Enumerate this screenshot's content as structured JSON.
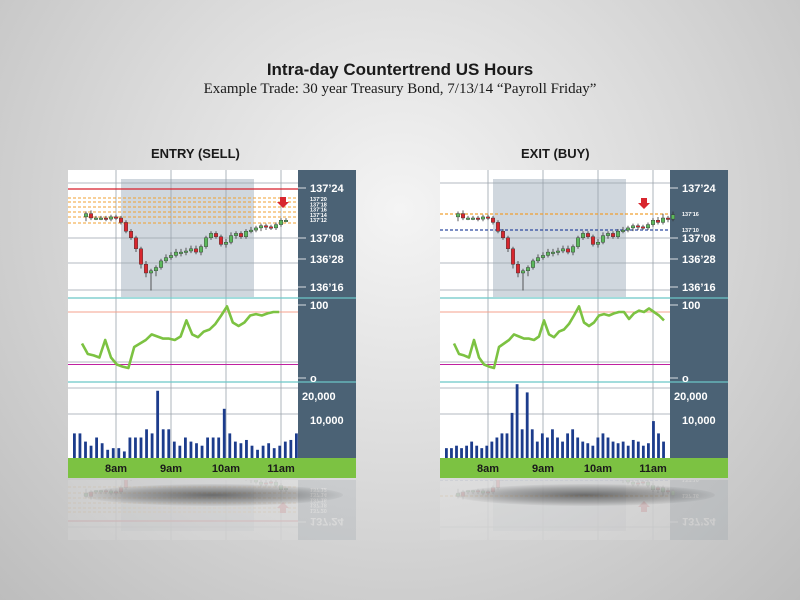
{
  "page": {
    "title": "Intra-day Countertrend US Hours",
    "subtitle": "Example Trade: 30 year Treasury Bond, 7/13/14 “Payroll Friday”"
  },
  "colors": {
    "axis_panel": "#4b6275",
    "time_bar": "#7cc242",
    "highlight": "#d0d7de",
    "resistance": "#d81f2b",
    "fib_lines": "#f0a030",
    "blue_dashed": "#2d4aa0",
    "candle_up": "#5cb85c",
    "candle_down": "#d8262e",
    "oscillator": "#7cc242",
    "osc_upper": "#f4a28c",
    "osc_lower": "#c020a0",
    "volume": "#1c3c8c",
    "arrow": "#d8262e"
  },
  "chart_data": [
    {
      "type": "candlestick+oscillator+volume",
      "heading": "ENTRY (SELL)",
      "x_ticks": [
        "8am",
        "9am",
        "10am",
        "11am"
      ],
      "price_ticks": [
        "137’24",
        "137’08",
        "136’28",
        "136’16"
      ],
      "fib_ticks": [
        "137’20",
        "137’18",
        "137’16",
        "137’14",
        "137’12"
      ],
      "osc_ticks": [
        "100",
        "o"
      ],
      "volume_ticks": [
        "20,000",
        "10,000"
      ],
      "candles": [
        [
          0.29,
          0.26,
          0.32,
          0.25
        ],
        [
          0.26,
          0.3,
          0.31,
          0.24
        ],
        [
          0.3,
          0.3,
          0.31,
          0.29
        ],
        [
          0.3,
          0.3,
          0.31,
          0.29
        ],
        [
          0.3,
          0.31,
          0.32,
          0.29
        ],
        [
          0.31,
          0.29,
          0.32,
          0.28
        ],
        [
          0.29,
          0.3,
          0.31,
          0.28
        ],
        [
          0.3,
          0.34,
          0.35,
          0.29
        ],
        [
          0.34,
          0.42,
          0.43,
          0.33
        ],
        [
          0.42,
          0.48,
          0.49,
          0.41
        ],
        [
          0.48,
          0.58,
          0.6,
          0.47
        ],
        [
          0.58,
          0.72,
          0.75,
          0.57
        ],
        [
          0.72,
          0.8,
          0.83,
          0.7
        ],
        [
          0.8,
          0.78,
          0.95,
          0.77
        ],
        [
          0.78,
          0.75,
          0.82,
          0.74
        ],
        [
          0.75,
          0.69,
          0.76,
          0.68
        ],
        [
          0.69,
          0.66,
          0.7,
          0.64
        ],
        [
          0.66,
          0.64,
          0.67,
          0.62
        ],
        [
          0.64,
          0.61,
          0.65,
          0.59
        ],
        [
          0.61,
          0.61,
          0.64,
          0.59
        ],
        [
          0.61,
          0.6,
          0.63,
          0.58
        ],
        [
          0.6,
          0.58,
          0.61,
          0.56
        ],
        [
          0.58,
          0.61,
          0.62,
          0.56
        ],
        [
          0.61,
          0.56,
          0.63,
          0.55
        ],
        [
          0.56,
          0.48,
          0.57,
          0.47
        ],
        [
          0.48,
          0.44,
          0.49,
          0.43
        ],
        [
          0.44,
          0.47,
          0.48,
          0.43
        ],
        [
          0.47,
          0.54,
          0.55,
          0.46
        ],
        [
          0.54,
          0.52,
          0.56,
          0.5
        ],
        [
          0.52,
          0.46,
          0.53,
          0.44
        ],
        [
          0.46,
          0.44,
          0.48,
          0.43
        ],
        [
          0.44,
          0.47,
          0.48,
          0.43
        ],
        [
          0.47,
          0.42,
          0.48,
          0.41
        ],
        [
          0.42,
          0.41,
          0.43,
          0.39
        ],
        [
          0.41,
          0.39,
          0.42,
          0.38
        ],
        [
          0.39,
          0.37,
          0.41,
          0.36
        ],
        [
          0.37,
          0.38,
          0.4,
          0.36
        ],
        [
          0.38,
          0.39,
          0.4,
          0.37
        ],
        [
          0.39,
          0.36,
          0.4,
          0.35
        ],
        [
          0.36,
          0.32,
          0.37,
          0.31
        ],
        [
          0.32,
          0.32,
          0.33,
          0.31
        ]
      ],
      "oscillator": [
        0.55,
        0.7,
        0.72,
        0.75,
        0.5,
        0.75,
        0.85,
        0.88,
        0.9,
        0.6,
        0.55,
        0.5,
        0.42,
        0.45,
        0.48,
        0.48,
        0.5,
        0.45,
        0.22,
        0.42,
        0.46,
        0.38,
        0.35,
        0.27,
        0.15,
        0.02,
        0.25,
        0.3,
        0.25,
        0.15,
        0.13,
        0.15,
        0.12,
        0.1,
        0.1
      ],
      "osc_upper_level": 0.1,
      "osc_lower_level": 0.85,
      "volume": [
        0.3,
        0.3,
        0.2,
        0.15,
        0.25,
        0.18,
        0.1,
        0.12,
        0.12,
        0.08,
        0.25,
        0.25,
        0.25,
        0.35,
        0.3,
        0.82,
        0.35,
        0.35,
        0.2,
        0.15,
        0.25,
        0.2,
        0.18,
        0.15,
        0.25,
        0.25,
        0.25,
        0.6,
        0.3,
        0.2,
        0.18,
        0.22,
        0.15,
        0.1,
        0.15,
        0.18,
        0.12,
        0.15,
        0.2,
        0.22,
        0.3
      ]
    },
    {
      "type": "candlestick+oscillator+volume",
      "heading": "EXIT (BUY)",
      "x_ticks": [
        "8am",
        "9am",
        "10am",
        "11am"
      ],
      "price_ticks": [
        "137’24",
        "137’08",
        "136’28",
        "136’16"
      ],
      "fib_ticks": [
        "137’16",
        "137’10"
      ],
      "osc_ticks": [
        "100",
        "o"
      ],
      "volume_ticks": [
        "20,000",
        "10,000"
      ],
      "candles": [
        [
          0.29,
          0.26,
          0.32,
          0.25
        ],
        [
          0.26,
          0.3,
          0.31,
          0.24
        ],
        [
          0.3,
          0.3,
          0.31,
          0.29
        ],
        [
          0.3,
          0.3,
          0.31,
          0.29
        ],
        [
          0.3,
          0.31,
          0.32,
          0.29
        ],
        [
          0.31,
          0.29,
          0.32,
          0.28
        ],
        [
          0.29,
          0.3,
          0.31,
          0.28
        ],
        [
          0.3,
          0.34,
          0.35,
          0.29
        ],
        [
          0.34,
          0.42,
          0.43,
          0.33
        ],
        [
          0.42,
          0.48,
          0.49,
          0.41
        ],
        [
          0.48,
          0.58,
          0.6,
          0.47
        ],
        [
          0.58,
          0.72,
          0.75,
          0.57
        ],
        [
          0.72,
          0.8,
          0.83,
          0.7
        ],
        [
          0.8,
          0.78,
          0.95,
          0.77
        ],
        [
          0.78,
          0.75,
          0.82,
          0.74
        ],
        [
          0.75,
          0.69,
          0.76,
          0.68
        ],
        [
          0.69,
          0.66,
          0.7,
          0.64
        ],
        [
          0.66,
          0.64,
          0.67,
          0.62
        ],
        [
          0.64,
          0.61,
          0.65,
          0.59
        ],
        [
          0.61,
          0.61,
          0.64,
          0.59
        ],
        [
          0.61,
          0.6,
          0.63,
          0.58
        ],
        [
          0.6,
          0.58,
          0.61,
          0.56
        ],
        [
          0.58,
          0.61,
          0.62,
          0.56
        ],
        [
          0.61,
          0.56,
          0.63,
          0.55
        ],
        [
          0.56,
          0.48,
          0.57,
          0.47
        ],
        [
          0.48,
          0.44,
          0.49,
          0.43
        ],
        [
          0.44,
          0.47,
          0.48,
          0.43
        ],
        [
          0.47,
          0.54,
          0.55,
          0.46
        ],
        [
          0.54,
          0.52,
          0.56,
          0.5
        ],
        [
          0.52,
          0.46,
          0.53,
          0.44
        ],
        [
          0.46,
          0.44,
          0.48,
          0.43
        ],
        [
          0.44,
          0.47,
          0.48,
          0.43
        ],
        [
          0.47,
          0.42,
          0.48,
          0.41
        ],
        [
          0.42,
          0.41,
          0.43,
          0.39
        ],
        [
          0.41,
          0.39,
          0.42,
          0.38
        ],
        [
          0.39,
          0.37,
          0.41,
          0.36
        ],
        [
          0.37,
          0.38,
          0.4,
          0.36
        ],
        [
          0.38,
          0.39,
          0.4,
          0.37
        ],
        [
          0.39,
          0.36,
          0.4,
          0.35
        ],
        [
          0.36,
          0.32,
          0.37,
          0.31
        ],
        [
          0.32,
          0.34,
          0.35,
          0.3
        ],
        [
          0.34,
          0.3,
          0.35,
          0.27
        ],
        [
          0.3,
          0.31,
          0.33,
          0.29
        ],
        [
          0.31,
          0.27,
          0.32,
          0.25
        ]
      ],
      "oscillator": [
        0.55,
        0.7,
        0.72,
        0.75,
        0.5,
        0.75,
        0.85,
        0.88,
        0.9,
        0.6,
        0.55,
        0.5,
        0.42,
        0.45,
        0.48,
        0.48,
        0.5,
        0.45,
        0.22,
        0.42,
        0.46,
        0.38,
        0.35,
        0.27,
        0.15,
        0.02,
        0.25,
        0.3,
        0.25,
        0.15,
        0.13,
        0.15,
        0.12,
        0.1,
        0.1,
        0.2,
        0.12,
        0.08,
        0.1,
        0.05,
        0.1,
        0.15,
        0.22
      ],
      "osc_upper_level": 0.1,
      "osc_lower_level": 0.85,
      "volume": [
        0.12,
        0.12,
        0.15,
        0.12,
        0.15,
        0.2,
        0.15,
        0.12,
        0.15,
        0.2,
        0.25,
        0.3,
        0.3,
        0.55,
        0.9,
        0.35,
        0.8,
        0.35,
        0.2,
        0.3,
        0.25,
        0.35,
        0.25,
        0.2,
        0.3,
        0.35,
        0.25,
        0.2,
        0.18,
        0.15,
        0.25,
        0.3,
        0.25,
        0.2,
        0.18,
        0.2,
        0.15,
        0.22,
        0.2,
        0.15,
        0.18,
        0.45,
        0.3,
        0.2
      ]
    }
  ]
}
